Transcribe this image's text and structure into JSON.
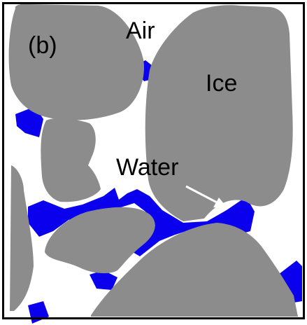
{
  "panel_label": "(b)",
  "labels": {
    "air": "Air",
    "ice": "Ice",
    "water": "Water"
  },
  "colors": {
    "ice": "#8c8c8c",
    "water": "#0a00ee",
    "air": "#ffffff",
    "frame": "#000000",
    "arrow": "#ffffff"
  }
}
